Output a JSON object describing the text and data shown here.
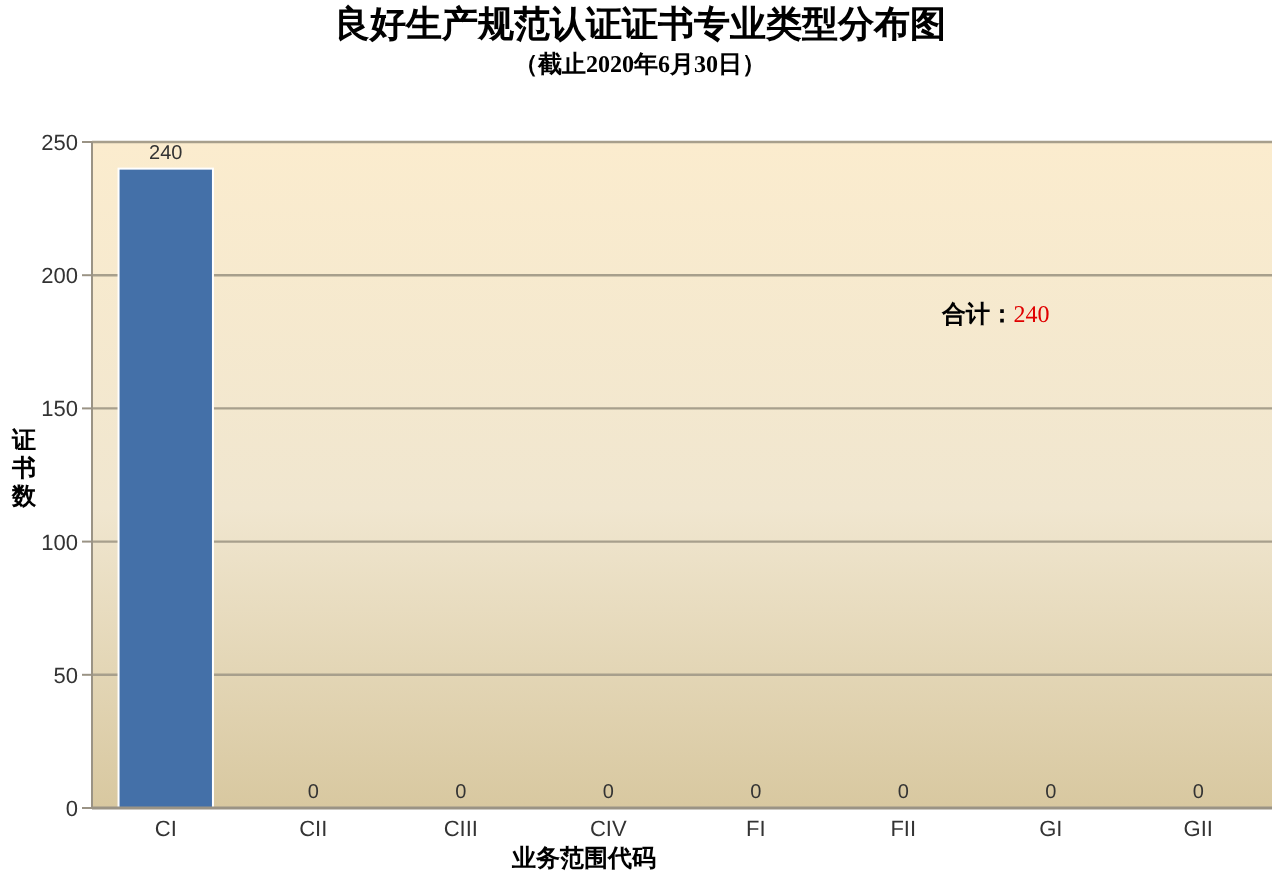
{
  "chart_data": {
    "type": "bar",
    "title": "良好生产规范认证证书专业类型分布图",
    "subtitle": "（截止2020年6月30日）",
    "xlabel": "业务范围代码",
    "ylabel": "证书数",
    "categories": [
      "CI",
      "CII",
      "CIII",
      "CIV",
      "FI",
      "FII",
      "GI",
      "GII"
    ],
    "values": [
      240,
      0,
      0,
      0,
      0,
      0,
      0,
      0
    ],
    "color": "#4470a8",
    "ylim": [
      0,
      250
    ],
    "yticks": [
      0,
      50,
      100,
      150,
      200,
      250
    ],
    "grid": "y",
    "data_labels": true,
    "annotations": [
      "合计：240"
    ]
  }
}
